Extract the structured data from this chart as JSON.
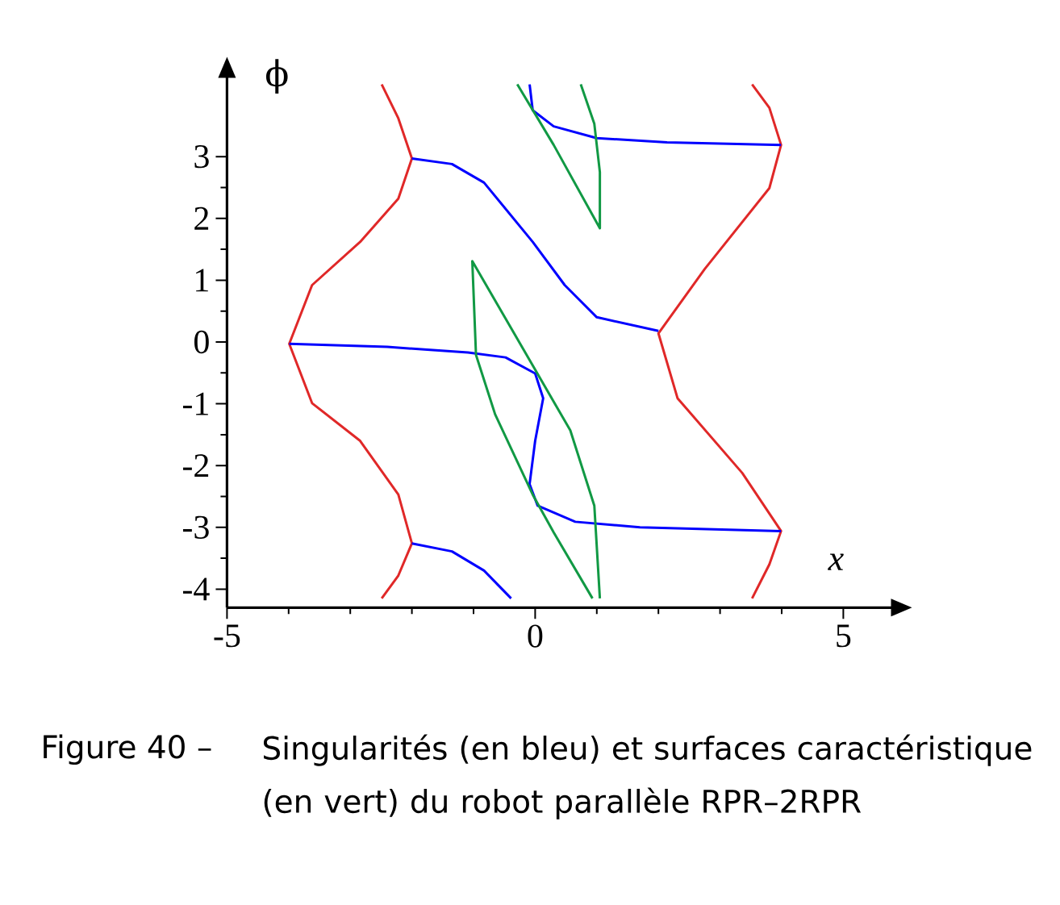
{
  "chart_data": {
    "type": "line",
    "xlabel": "x",
    "ylabel": "ϕ",
    "xlim": [
      -5,
      5.8
    ],
    "ylim": [
      -4.3,
      4.3
    ],
    "xticks": [
      -5,
      0,
      5
    ],
    "yticks": [
      -4,
      -3,
      -2,
      -1,
      0,
      1,
      2,
      3
    ],
    "marker": "none",
    "line_style": "solid",
    "annotations": [
      "Figure 40 –",
      "Singularités (en bleu) et surfaces caractéristique (en vert) du robot parallèle RPR–2RPR"
    ],
    "series": [
      {
        "color": "#e02828",
        "x": [
          -2.49,
          -2.22,
          -2.0,
          -2.22,
          -2.84,
          -3.62,
          -3.99,
          -3.62,
          -2.84,
          -2.22,
          -2.0,
          -2.22,
          -2.49
        ],
        "values": [
          4.17,
          3.62,
          2.97,
          2.32,
          1.62,
          0.92,
          -0.03,
          -0.99,
          -1.6,
          -2.47,
          -3.26,
          -3.78,
          -4.15
        ]
      },
      {
        "color": "#e02828",
        "x": [
          3.52,
          3.8,
          3.99,
          3.8,
          2.75,
          2.0,
          2.31,
          3.36,
          3.99,
          3.8,
          3.52
        ],
        "values": [
          4.17,
          3.79,
          3.19,
          2.49,
          1.18,
          0.14,
          -0.91,
          -2.12,
          -3.06,
          -3.6,
          -4.15
        ]
      },
      {
        "color": "#0000ff",
        "x": [
          -2.0,
          -1.35,
          -0.83,
          -0.04,
          0.48,
          1.0,
          2.0
        ],
        "values": [
          2.97,
          2.88,
          2.58,
          1.62,
          0.92,
          0.4,
          0.18
        ]
      },
      {
        "color": "#0000ff",
        "x": [
          -3.99,
          -2.4,
          -1.09,
          -0.48,
          0.0,
          0.13,
          0.0,
          -0.09,
          0.04,
          0.65,
          1.7,
          3.99
        ],
        "values": [
          -0.03,
          -0.08,
          -0.17,
          -0.25,
          -0.51,
          -0.91,
          -1.6,
          -2.3,
          -2.65,
          -2.91,
          -3.0,
          -3.06
        ]
      },
      {
        "color": "#0000ff",
        "x": [
          -2.0,
          -1.35,
          -0.83,
          -0.39
        ],
        "values": [
          -3.26,
          -3.39,
          -3.7,
          -4.15
        ]
      },
      {
        "color": "#0000ff",
        "x": [
          -0.09,
          -0.04,
          0.3,
          1.0,
          2.14,
          3.99
        ],
        "values": [
          4.17,
          3.75,
          3.49,
          3.3,
          3.23,
          3.19
        ]
      },
      {
        "color": "#119944",
        "x": [
          -0.29,
          0.3,
          1.05,
          1.05,
          0.96,
          0.74
        ],
        "values": [
          4.17,
          3.19,
          1.84,
          2.75,
          3.53,
          4.17
        ]
      },
      {
        "color": "#119944",
        "x": [
          0.93,
          0.3,
          -0.04,
          -0.65,
          -0.96,
          -1.02,
          -0.04,
          0.57,
          0.96,
          1.05
        ],
        "values": [
          -4.15,
          -3.08,
          -2.47,
          -1.17,
          -0.21,
          1.31,
          -0.38,
          -1.43,
          -2.65,
          -4.15
        ]
      }
    ]
  }
}
